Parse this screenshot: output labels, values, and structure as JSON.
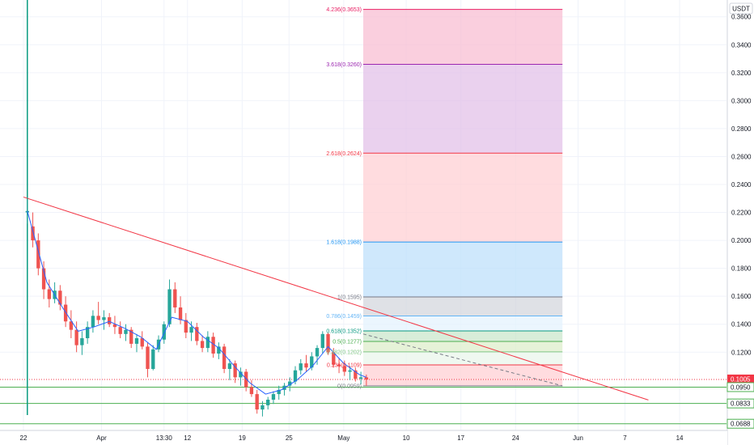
{
  "chart_data": {
    "type": "candlestick",
    "currency": "USDT",
    "y_ticks": [
      "0.3600",
      "0.3400",
      "0.3200",
      "0.3000",
      "0.2800",
      "0.2600",
      "0.2400",
      "0.2200",
      "0.2000",
      "0.1800",
      "0.1600",
      "0.1400",
      "0.1200"
    ],
    "y_tick_values": [
      0.36,
      0.34,
      0.32,
      0.3,
      0.28,
      0.26,
      0.24,
      0.22,
      0.2,
      0.18,
      0.16,
      0.14,
      0.12
    ],
    "x_ticks": [
      "22",
      "Apr",
      "13:30",
      "12",
      "19",
      "25",
      "May",
      "10",
      "17",
      "24",
      "Jun",
      "7",
      "14"
    ],
    "x_tick_days": [
      3,
      13,
      21,
      24,
      31,
      37,
      44,
      52,
      59,
      66,
      74,
      80,
      87
    ],
    "ylim": [
      0.064,
      0.372
    ],
    "xlim_days": [
      0,
      93
    ],
    "fib_levels": [
      {
        "ratio": "4.236",
        "value": 0.3653,
        "label": "4.236(0.3653)",
        "color": "#e91e63",
        "fill": "#f8bbd0"
      },
      {
        "ratio": "3.618",
        "value": 0.326,
        "label": "3.618(0.3260)",
        "color": "#9c27b0",
        "fill": "#e1bee7"
      },
      {
        "ratio": "2.618",
        "value": 0.2624,
        "label": "2.618(0.2624)",
        "color": "#f23645",
        "fill": "#ffcdd2"
      },
      {
        "ratio": "1.618",
        "value": 0.1988,
        "label": "1.618(0.1988)",
        "color": "#2196f3",
        "fill": "#bbdefb"
      },
      {
        "ratio": "1",
        "value": 0.1595,
        "label": "1(0.1595)",
        "color": "#787b86",
        "fill": "#d1d4dc"
      },
      {
        "ratio": "0.786",
        "value": 0.1459,
        "label": "0.786(0.1459)",
        "color": "#64b5f6",
        "fill": "#e3f2fd"
      },
      {
        "ratio": "0.618",
        "value": 0.1352,
        "label": "0.618(0.1352)",
        "color": "#089981",
        "fill": "#c8e6c9"
      },
      {
        "ratio": "0.5",
        "value": 0.1277,
        "label": "0.5(0.1277)",
        "color": "#4caf50",
        "fill": "#dcedc8"
      },
      {
        "ratio": "0.382",
        "value": 0.1202,
        "label": "0.382(0.1202)",
        "color": "#81c784",
        "fill": "#e8f5e9"
      },
      {
        "ratio": "0.236",
        "value": 0.1109,
        "label": "0.236(0.1109)",
        "color": "#f23645",
        "fill": "#ffcdd2"
      },
      {
        "ratio": "0",
        "value": 0.0959,
        "label": "0(0.0959)",
        "color": "#787b86",
        "fill": "#ffcdd2"
      }
    ],
    "fib_x_days": [
      46.5,
      72
    ],
    "horizontal_lines": [
      0.095,
      0.0833,
      0.0688
    ],
    "trendline": {
      "start": [
        3,
        0.231
      ],
      "end": [
        83,
        0.0858
      ]
    },
    "dashed_line": {
      "start": [
        46.5,
        0.133
      ],
      "end": [
        72,
        0.0959
      ]
    },
    "vertical_line_day": 3.5,
    "dotted_price_level": 0.1005,
    "price_tags": [
      {
        "value": 0.1005,
        "text": "0.1005",
        "sub": "10:36",
        "bg": "#f23645",
        "fg": "#ffffff"
      },
      {
        "value": 0.095,
        "text": "0.0950",
        "bg": "#ffffff",
        "fg": "#131722",
        "border": "#4caf50"
      },
      {
        "value": 0.0833,
        "text": "0.0833",
        "bg": "#ffffff",
        "fg": "#131722",
        "border": "#4caf50"
      },
      {
        "value": 0.0688,
        "text": "0.0688",
        "bg": "#ffffff",
        "fg": "#131722",
        "border": "#4caf50"
      }
    ],
    "up_color": "#26a69a",
    "down_color": "#ef5350",
    "ma_color": "#2962ff",
    "grid": true,
    "candles": [
      [
        3.5,
        0.22,
        0.23,
        0.212,
        0.221
      ],
      [
        4.2,
        0.21,
        0.22,
        0.195,
        0.2
      ],
      [
        4.9,
        0.2,
        0.205,
        0.175,
        0.18
      ],
      [
        5.6,
        0.18,
        0.185,
        0.158,
        0.165
      ],
      [
        6.3,
        0.165,
        0.172,
        0.152,
        0.158
      ],
      [
        7.0,
        0.158,
        0.17,
        0.155,
        0.164
      ],
      [
        7.7,
        0.164,
        0.168,
        0.15,
        0.154
      ],
      [
        8.4,
        0.154,
        0.16,
        0.138,
        0.142
      ],
      [
        9.1,
        0.142,
        0.15,
        0.13,
        0.136
      ],
      [
        9.8,
        0.136,
        0.142,
        0.12,
        0.125
      ],
      [
        10.5,
        0.125,
        0.135,
        0.118,
        0.13
      ],
      [
        11.2,
        0.13,
        0.142,
        0.126,
        0.138
      ],
      [
        11.9,
        0.138,
        0.15,
        0.134,
        0.146
      ],
      [
        12.6,
        0.146,
        0.156,
        0.14,
        0.143
      ],
      [
        13.3,
        0.143,
        0.15,
        0.136,
        0.145
      ],
      [
        14.0,
        0.145,
        0.148,
        0.138,
        0.14
      ],
      [
        14.7,
        0.14,
        0.146,
        0.133,
        0.138
      ],
      [
        15.4,
        0.138,
        0.142,
        0.13,
        0.133
      ],
      [
        16.1,
        0.133,
        0.14,
        0.128,
        0.136
      ],
      [
        16.8,
        0.136,
        0.138,
        0.123,
        0.126
      ],
      [
        17.5,
        0.126,
        0.133,
        0.12,
        0.13
      ],
      [
        18.2,
        0.13,
        0.135,
        0.122,
        0.124
      ],
      [
        18.9,
        0.124,
        0.127,
        0.102,
        0.108
      ],
      [
        19.6,
        0.108,
        0.125,
        0.107,
        0.122
      ],
      [
        20.3,
        0.122,
        0.132,
        0.12,
        0.129
      ],
      [
        21.0,
        0.129,
        0.142,
        0.126,
        0.14
      ],
      [
        21.7,
        0.14,
        0.172,
        0.138,
        0.165
      ],
      [
        22.4,
        0.165,
        0.17,
        0.148,
        0.152
      ],
      [
        23.1,
        0.152,
        0.16,
        0.14,
        0.143
      ],
      [
        23.8,
        0.143,
        0.148,
        0.13,
        0.134
      ],
      [
        24.5,
        0.134,
        0.142,
        0.128,
        0.138
      ],
      [
        25.2,
        0.138,
        0.141,
        0.125,
        0.128
      ],
      [
        25.9,
        0.128,
        0.132,
        0.12,
        0.123
      ],
      [
        26.6,
        0.123,
        0.135,
        0.12,
        0.131
      ],
      [
        27.3,
        0.131,
        0.134,
        0.116,
        0.119
      ],
      [
        28.0,
        0.119,
        0.127,
        0.115,
        0.124
      ],
      [
        28.7,
        0.124,
        0.126,
        0.105,
        0.108
      ],
      [
        29.4,
        0.108,
        0.115,
        0.1,
        0.112
      ],
      [
        30.1,
        0.112,
        0.114,
        0.098,
        0.102
      ],
      [
        30.8,
        0.102,
        0.109,
        0.096,
        0.106
      ],
      [
        31.5,
        0.106,
        0.108,
        0.092,
        0.095
      ],
      [
        32.2,
        0.095,
        0.1,
        0.088,
        0.09
      ],
      [
        32.9,
        0.09,
        0.093,
        0.076,
        0.079
      ],
      [
        33.6,
        0.079,
        0.085,
        0.074,
        0.082
      ],
      [
        34.3,
        0.082,
        0.088,
        0.079,
        0.086
      ],
      [
        35.0,
        0.086,
        0.092,
        0.083,
        0.09
      ],
      [
        35.7,
        0.09,
        0.096,
        0.086,
        0.093
      ],
      [
        36.4,
        0.093,
        0.098,
        0.089,
        0.096
      ],
      [
        37.1,
        0.096,
        0.102,
        0.092,
        0.099
      ],
      [
        37.8,
        0.099,
        0.11,
        0.097,
        0.107
      ],
      [
        38.5,
        0.107,
        0.115,
        0.104,
        0.112
      ],
      [
        39.2,
        0.112,
        0.118,
        0.106,
        0.109
      ],
      [
        39.9,
        0.109,
        0.12,
        0.107,
        0.117
      ],
      [
        40.6,
        0.117,
        0.125,
        0.111,
        0.123
      ],
      [
        41.3,
        0.123,
        0.135,
        0.119,
        0.133
      ],
      [
        42.0,
        0.133,
        0.134,
        0.118,
        0.12
      ],
      [
        42.7,
        0.12,
        0.123,
        0.109,
        0.111
      ],
      [
        43.4,
        0.111,
        0.116,
        0.105,
        0.11
      ],
      [
        44.1,
        0.11,
        0.114,
        0.103,
        0.106
      ],
      [
        44.8,
        0.106,
        0.11,
        0.1,
        0.107
      ],
      [
        45.5,
        0.107,
        0.109,
        0.099,
        0.101
      ],
      [
        46.2,
        0.101,
        0.106,
        0.097,
        0.102
      ],
      [
        46.9,
        0.102,
        0.104,
        0.096,
        0.1005
      ]
    ],
    "ma": [
      [
        3.5,
        0.221
      ],
      [
        6,
        0.17
      ],
      [
        8,
        0.152
      ],
      [
        10,
        0.135
      ],
      [
        12,
        0.138
      ],
      [
        14,
        0.142
      ],
      [
        16,
        0.137
      ],
      [
        18,
        0.131
      ],
      [
        20,
        0.122
      ],
      [
        22,
        0.145
      ],
      [
        24,
        0.142
      ],
      [
        26,
        0.131
      ],
      [
        28,
        0.123
      ],
      [
        30,
        0.11
      ],
      [
        32,
        0.098
      ],
      [
        34,
        0.09
      ],
      [
        36,
        0.093
      ],
      [
        38,
        0.1
      ],
      [
        40,
        0.11
      ],
      [
        42,
        0.124
      ],
      [
        44,
        0.112
      ],
      [
        46,
        0.104
      ],
      [
        46.9,
        0.102
      ]
    ]
  }
}
